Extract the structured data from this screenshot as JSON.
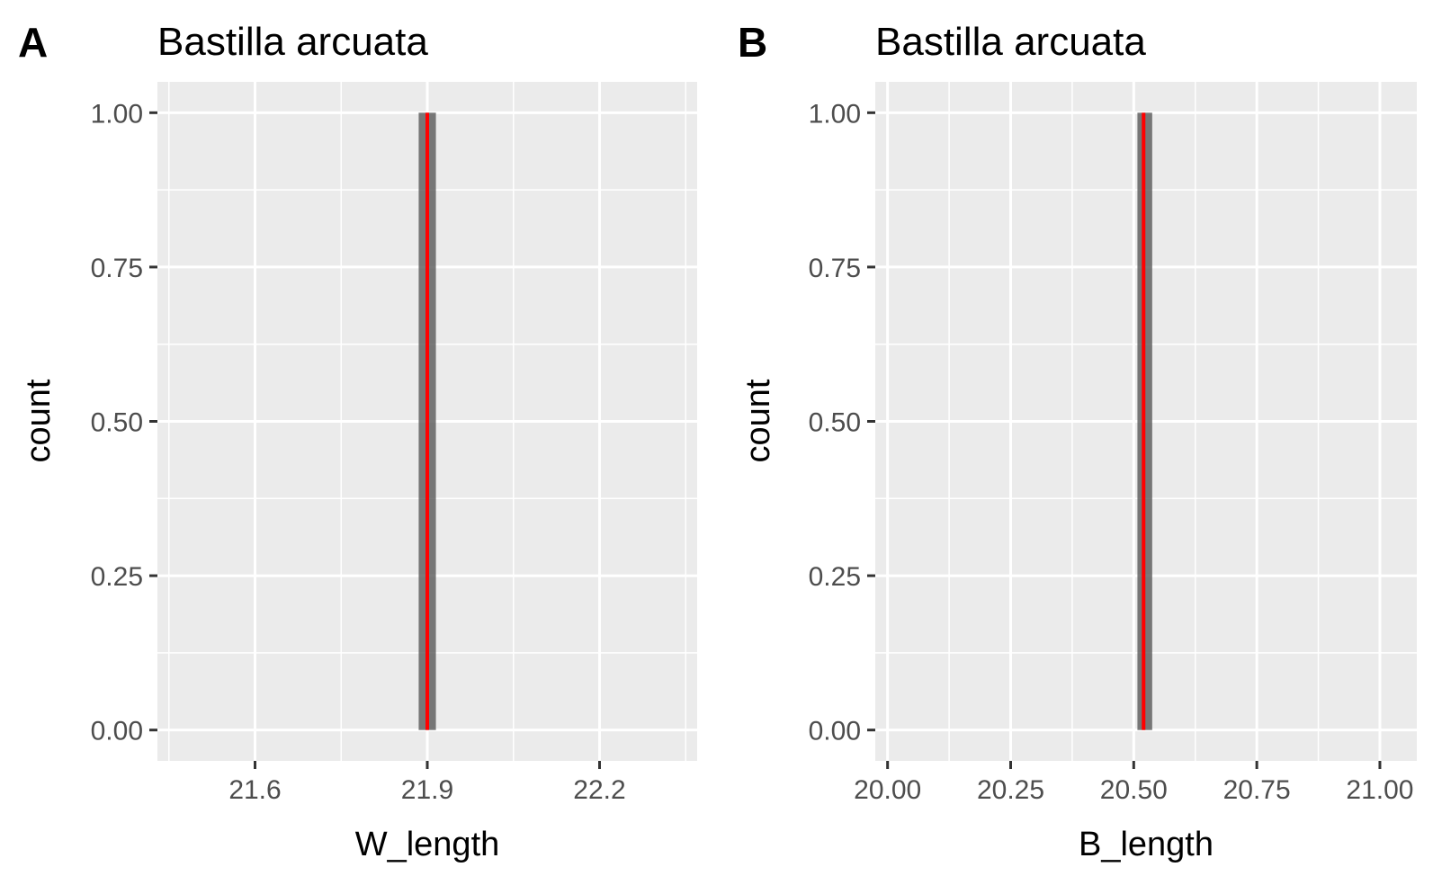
{
  "chart_data": [
    {
      "type": "histogram",
      "panel_label": "A",
      "title": "Bastilla arcuata",
      "xlabel": "W_length",
      "ylabel": "count",
      "xlim": [
        21.43,
        22.37
      ],
      "ylim": [
        -0.05,
        1.05
      ],
      "x_ticks": [
        21.6,
        21.9,
        22.2
      ],
      "x_tick_labels": [
        "21.6",
        "21.9",
        "22.2"
      ],
      "x_minor": [
        21.45,
        21.75,
        22.05,
        22.35
      ],
      "y_ticks": [
        0,
        0.25,
        0.5,
        0.75,
        1.0
      ],
      "y_tick_labels": [
        "0.00",
        "0.25",
        "0.50",
        "0.75",
        "1.00"
      ],
      "y_minor": [
        0.125,
        0.375,
        0.625,
        0.875
      ],
      "bars": [
        {
          "x_min": 21.885,
          "x_max": 21.915,
          "count": 1
        }
      ],
      "vline": {
        "x": 21.9,
        "color": "#ff0000"
      },
      "grid": true,
      "background": "#ebebeb",
      "bar_color": "#595959"
    },
    {
      "type": "histogram",
      "panel_label": "B",
      "title": "Bastilla arcuata",
      "xlabel": "B_length",
      "ylabel": "count",
      "xlim": [
        19.975,
        21.075
      ],
      "ylim": [
        -0.05,
        1.05
      ],
      "x_ticks": [
        20.0,
        20.25,
        20.5,
        20.75,
        21.0
      ],
      "x_tick_labels": [
        "20.00",
        "20.25",
        "20.50",
        "20.75",
        "21.00"
      ],
      "x_minor": [
        20.125,
        20.375,
        20.625,
        20.875
      ],
      "y_ticks": [
        0,
        0.25,
        0.5,
        0.75,
        1.0
      ],
      "y_tick_labels": [
        "0.00",
        "0.25",
        "0.50",
        "0.75",
        "1.00"
      ],
      "y_minor": [
        0.125,
        0.375,
        0.625,
        0.875
      ],
      "bars": [
        {
          "x_min": 20.5075,
          "x_max": 20.5375,
          "count": 1
        }
      ],
      "vline": {
        "x": 20.52,
        "color": "#ff0000"
      },
      "grid": true,
      "background": "#ebebeb",
      "bar_color": "#595959"
    }
  ]
}
